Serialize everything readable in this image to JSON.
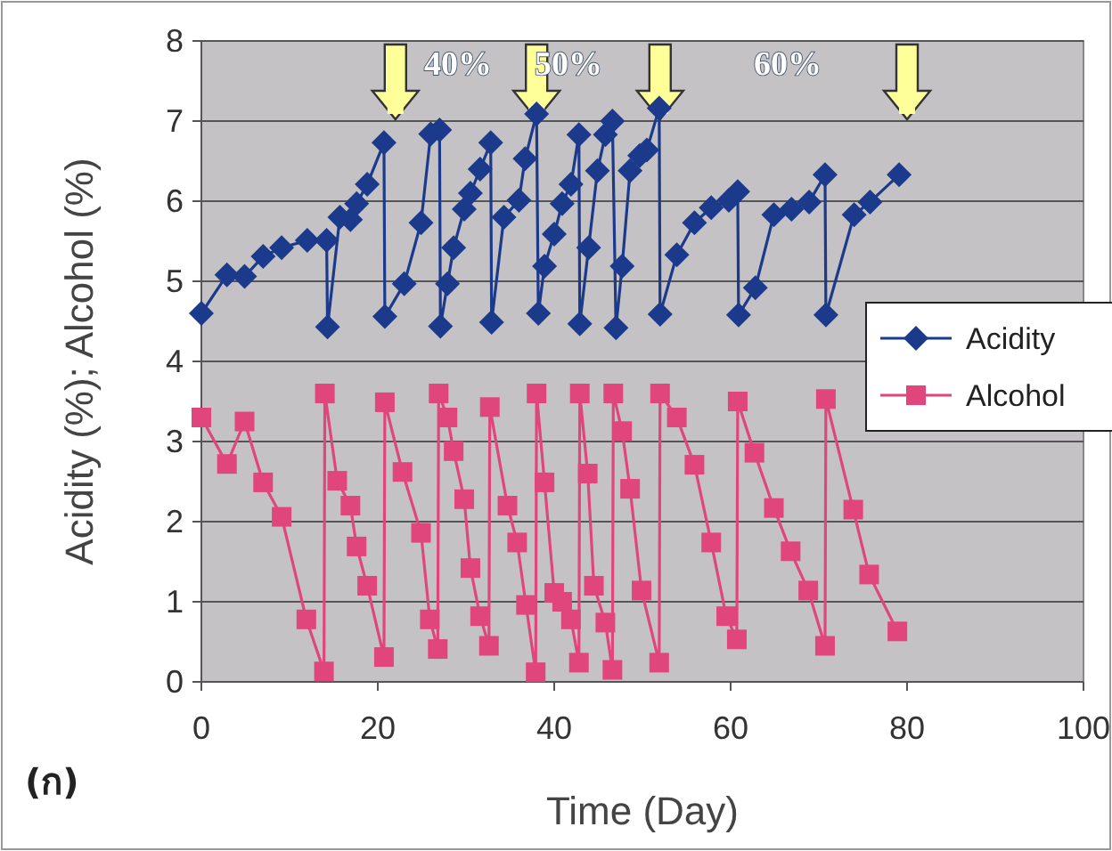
{
  "chart_data": {
    "type": "line",
    "xlabel": "Time (Day)",
    "ylabel": "Acidity (%); Alcohol (%)",
    "xlim": [
      0,
      100
    ],
    "xticks": [
      0,
      20,
      40,
      60,
      80,
      100
    ],
    "ylim": [
      0,
      8
    ],
    "yticks": [
      0,
      1,
      2,
      3,
      4,
      5,
      6,
      7,
      8
    ],
    "grid": "y",
    "legend": "right",
    "line_style": "solid",
    "series": [
      {
        "name": "Acidity",
        "color": "#1c3a8c",
        "marker": "diamond",
        "x": [
          0,
          2.9,
          4.9,
          7,
          9.1,
          12,
          14.2,
          14.3,
          15.7,
          16.9,
          17.6,
          18.8,
          20.7,
          20.8,
          23,
          24.9,
          26,
          27,
          27.1,
          27.9,
          28.6,
          29.8,
          30.5,
          31.6,
          32.8,
          32.9,
          34.3,
          36,
          36.7,
          38,
          38.2,
          38.9,
          40,
          40.9,
          41.9,
          42.8,
          42.9,
          43.9,
          44.9,
          45.8,
          46.6,
          47,
          47.7,
          48.6,
          49.7,
          50.5,
          51.9,
          52,
          53.9,
          55.9,
          57.8,
          59.8,
          60.8,
          60.9,
          62.8,
          64.9,
          66.9,
          68.9,
          70.7,
          70.8,
          74,
          75.8,
          79.1
        ],
        "values": [
          4.6,
          5.08,
          5.06,
          5.31,
          5.42,
          5.51,
          5.51,
          4.43,
          5.8,
          5.77,
          5.97,
          6.21,
          6.73,
          4.56,
          4.97,
          5.73,
          6.84,
          6.89,
          4.44,
          4.97,
          5.42,
          5.9,
          6.1,
          6.4,
          6.73,
          4.49,
          5.8,
          6.01,
          6.53,
          7.09,
          4.6,
          5.19,
          5.59,
          5.97,
          6.21,
          6.83,
          4.47,
          5.42,
          6.38,
          6.83,
          7.0,
          4.42,
          5.19,
          6.38,
          6.57,
          6.64,
          7.16,
          4.59,
          5.33,
          5.73,
          5.92,
          6.01,
          6.12,
          4.58,
          4.92,
          5.83,
          5.9,
          5.99,
          6.33,
          4.58,
          5.83,
          5.99,
          6.33
        ]
      },
      {
        "name": "Alcohol",
        "color": "#e0457b",
        "marker": "square",
        "x": [
          0,
          2.9,
          4.9,
          7,
          9.1,
          11.9,
          13.9,
          14,
          15.4,
          16.9,
          17.6,
          18.8,
          20.7,
          20.8,
          22.8,
          24.9,
          25.9,
          26.8,
          26.9,
          27.9,
          28.6,
          29.8,
          30.5,
          31.6,
          32.6,
          32.7,
          34.7,
          35.8,
          36.8,
          37.9,
          38,
          38.9,
          40,
          40.9,
          41.9,
          42.8,
          42.9,
          43.8,
          44.5,
          45.8,
          46.6,
          46.7,
          47.7,
          48.6,
          49.9,
          51.9,
          52,
          53.9,
          55.9,
          57.8,
          59.5,
          60.7,
          60.8,
          62.7,
          64.9,
          66.8,
          68.8,
          70.7,
          70.8,
          73.9,
          75.7,
          78.9
        ],
        "values": [
          3.3,
          2.72,
          3.25,
          2.49,
          2.06,
          0.78,
          0.13,
          3.6,
          2.51,
          2.2,
          1.69,
          1.2,
          0.31,
          3.49,
          2.62,
          1.86,
          0.78,
          0.41,
          3.6,
          3.3,
          2.88,
          2.28,
          1.42,
          0.82,
          0.45,
          3.43,
          2.2,
          1.74,
          0.96,
          0.12,
          3.6,
          2.49,
          1.11,
          1.0,
          0.78,
          0.24,
          3.6,
          2.6,
          1.2,
          0.74,
          0.15,
          3.6,
          3.13,
          2.41,
          1.14,
          0.24,
          3.6,
          3.3,
          2.71,
          1.74,
          0.82,
          0.53,
          3.5,
          2.86,
          2.17,
          1.63,
          1.14,
          0.45,
          3.53,
          2.15,
          1.34,
          0.63
        ]
      }
    ],
    "ref_lines": [
      {
        "axis": "x",
        "value": 22,
        "color": "#ffff99"
      },
      {
        "axis": "x",
        "value": 38,
        "color": "#ffff99"
      },
      {
        "axis": "x",
        "value": 52,
        "color": "#ffff99"
      },
      {
        "axis": "x",
        "value": 80,
        "color": "#ffff99"
      }
    ],
    "annotations": [
      "40%",
      "50%",
      "60%",
      "(ก)"
    ]
  }
}
